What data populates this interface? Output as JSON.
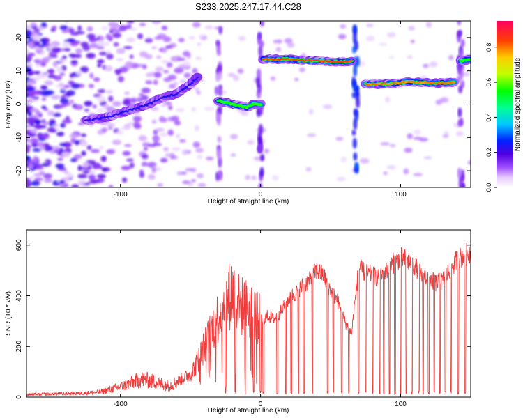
{
  "title": "S233.2025.247.17.44.C28",
  "chart_data": [
    {
      "type": "heatmap",
      "xlabel": "Height of straight line (km)",
      "ylabel": "Frequency (Hz)",
      "xlim": [
        -167,
        150
      ],
      "ylim": [
        -25,
        25
      ],
      "xticks": [
        -100,
        0,
        100
      ],
      "xtick_labels": [
        "-100",
        "0",
        "100"
      ],
      "yticks": [
        -20,
        -10,
        0,
        10,
        20
      ],
      "ytick_labels": [
        "-20",
        "-10",
        "0",
        "10",
        "20"
      ],
      "colorbar": {
        "label": "Normalized spectral amplitude",
        "range": [
          0,
          0.95
        ],
        "ticks": [
          0,
          0.2,
          0.4,
          0.6,
          0.8
        ],
        "tick_labels": [
          "0.0",
          "0.2",
          "0.4",
          "0.6",
          "0.8"
        ]
      },
      "ridges": [
        {
          "name": "rising-track",
          "x": [
            -125,
            -110,
            -95,
            -80,
            -70,
            -60,
            -50,
            -45
          ],
          "y": [
            -5,
            -4,
            -2,
            0,
            2,
            3,
            6,
            8
          ],
          "amplitude": 0.25
        },
        {
          "name": "near-zero-track",
          "x": [
            -30,
            -20,
            -15,
            -10,
            -5,
            0
          ],
          "y": [
            1,
            0,
            -0.5,
            -1,
            0,
            0
          ],
          "amplitude": 0.6
        },
        {
          "name": "upper-track",
          "x": [
            2,
            10,
            20,
            30,
            40,
            50,
            60,
            65
          ],
          "y": [
            13.5,
            13.5,
            13.5,
            13.2,
            13,
            12.8,
            12.7,
            13
          ],
          "amplitude": 0.9
        },
        {
          "name": "middle-track",
          "x": [
            75,
            85,
            95,
            105,
            115,
            125,
            138
          ],
          "y": [
            6,
            6,
            6.2,
            6.8,
            6.5,
            6.3,
            6.5
          ],
          "amplitude": 0.85
        },
        {
          "name": "right-edge-track",
          "x": [
            143,
            150
          ],
          "y": [
            13,
            13.5
          ],
          "amplitude": 0.6
        }
      ]
    },
    {
      "type": "line",
      "xlabel": "Height of straight line (km)",
      "ylabel": "SNR (10 * v/v)",
      "xlim": [
        -167,
        150
      ],
      "ylim": [
        0,
        660
      ],
      "xticks": [
        -100,
        0,
        100
      ],
      "xtick_labels": [
        "-100",
        "0",
        "100"
      ],
      "yticks": [
        0,
        200,
        400,
        600
      ],
      "ytick_labels": [
        "0",
        "200",
        "400",
        "600"
      ],
      "series": [
        {
          "name": "SNR",
          "color": "#f03c3c",
          "x": [
            -167,
            -150,
            -130,
            -115,
            -100,
            -90,
            -85,
            -75,
            -65,
            -55,
            -50,
            -45,
            -40,
            -35,
            -30,
            -25,
            -20,
            -15,
            -10,
            -5,
            0,
            5,
            10,
            15,
            20,
            25,
            30,
            35,
            40,
            45,
            50,
            55,
            60,
            65,
            70,
            75,
            80,
            85,
            90,
            95,
            100,
            105,
            110,
            115,
            120,
            125,
            130,
            135,
            140,
            145,
            150
          ],
          "y": [
            10,
            12,
            15,
            20,
            40,
            60,
            70,
            60,
            45,
            75,
            90,
            140,
            200,
            260,
            320,
            370,
            420,
            360,
            350,
            330,
            300,
            320,
            310,
            340,
            390,
            410,
            440,
            460,
            500,
            480,
            420,
            380,
            300,
            250,
            510,
            490,
            480,
            470,
            500,
            530,
            550,
            540,
            520,
            480,
            470,
            450,
            460,
            500,
            540,
            560,
            570
          ]
        }
      ],
      "dropout_x": [
        -25,
        -18,
        -11,
        -5,
        0,
        2,
        12,
        18,
        22,
        27,
        31,
        37,
        48,
        52,
        58,
        63,
        70,
        75,
        80,
        85,
        88,
        92,
        96,
        100,
        104,
        108,
        113,
        116,
        120,
        124,
        128,
        132,
        136,
        141,
        146
      ]
    }
  ]
}
